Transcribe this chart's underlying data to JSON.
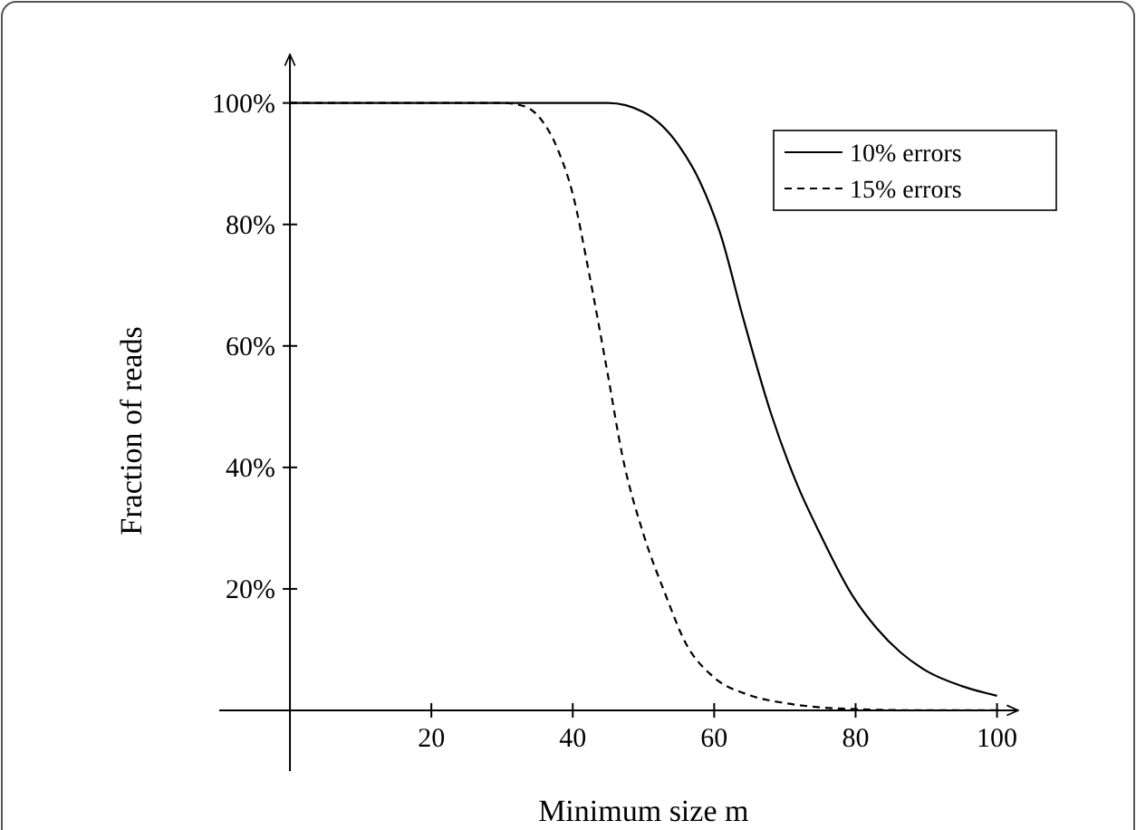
{
  "chart_data": {
    "type": "line",
    "xlabel": "Minimum size m",
    "ylabel": "Fraction of reads",
    "xlim": [
      -10,
      103
    ],
    "ylim": [
      -10,
      108
    ],
    "xticks": [
      20,
      40,
      60,
      80,
      100
    ],
    "yticks": [
      {
        "value": 20,
        "label": "20%"
      },
      {
        "value": 40,
        "label": "40%"
      },
      {
        "value": 60,
        "label": "60%"
      },
      {
        "value": 80,
        "label": "80%"
      },
      {
        "value": 100,
        "label": "100%"
      }
    ],
    "grid": false,
    "legend": "top right",
    "series": [
      {
        "name": "10% errors",
        "color": "#000000",
        "line_style": "solid",
        "x": [
          0,
          40,
          45,
          50,
          55,
          58,
          61,
          64,
          68,
          71.8,
          75,
          79.5,
          83,
          86.4,
          90,
          95,
          100
        ],
        "values": [
          100,
          100,
          100,
          98.5,
          93,
          87,
          78,
          65,
          49,
          37,
          29,
          19,
          13.5,
          9.5,
          6.5,
          4,
          2.4
        ]
      },
      {
        "name": "15% errors",
        "color": "#000000",
        "line_style": "dashed",
        "x": [
          0,
          30,
          33,
          35,
          38,
          40,
          42.3,
          45,
          47,
          50,
          53,
          56,
          59.7,
          65,
          70,
          75,
          80,
          90,
          100
        ],
        "values": [
          100,
          100,
          99.5,
          98,
          92,
          85,
          72,
          55,
          42,
          29,
          19.4,
          11,
          5.7,
          2.5,
          1.2,
          0.5,
          0.2,
          0,
          0
        ]
      }
    ]
  }
}
